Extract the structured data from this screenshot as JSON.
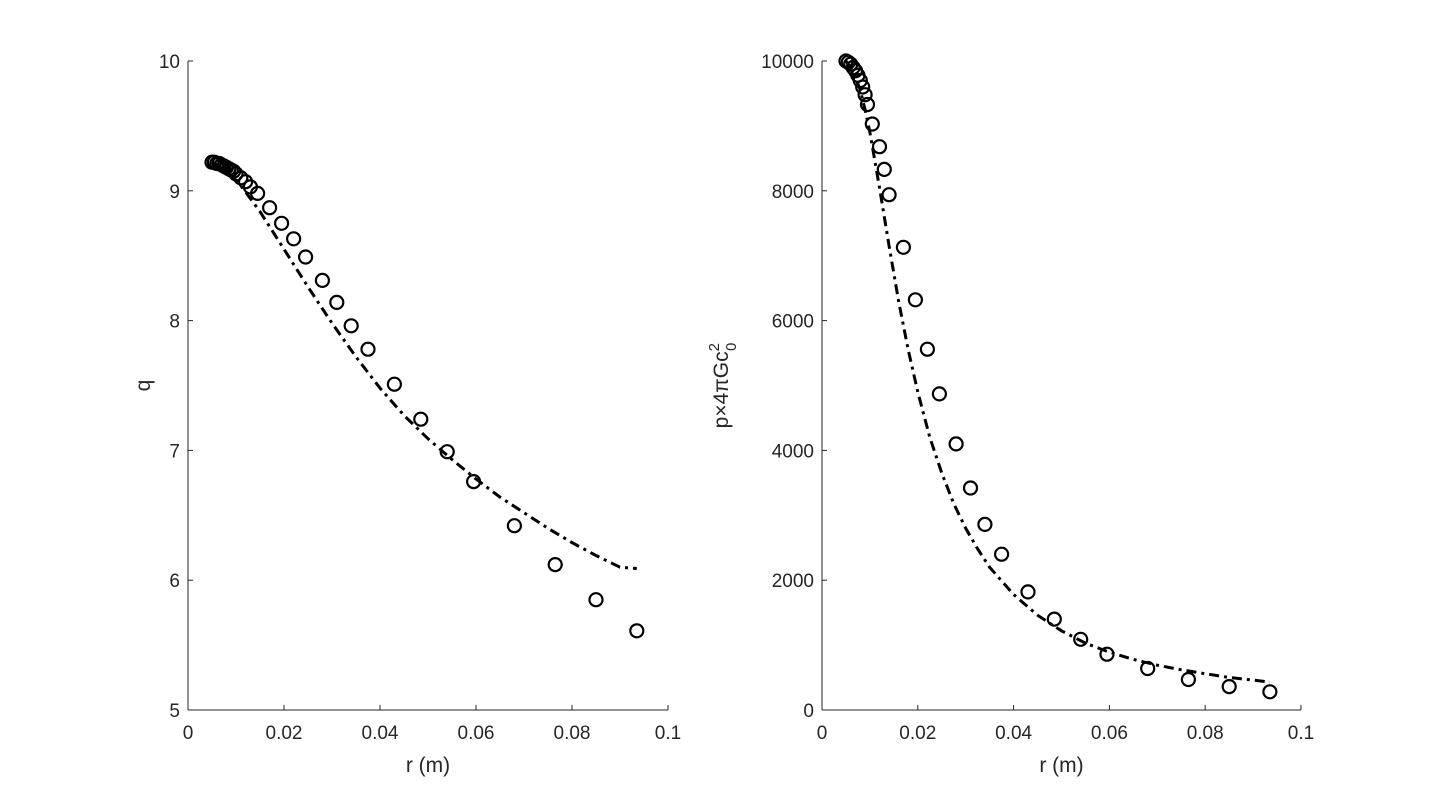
{
  "chart_data": [
    {
      "type": "scatter",
      "title": "",
      "xlabel": "r (m)",
      "ylabel": "q",
      "xlim": [
        0,
        0.1
      ],
      "ylim": [
        5,
        10
      ],
      "xticks": [
        0,
        0.02,
        0.04,
        0.06,
        0.08,
        0.1
      ],
      "xtick_labels": [
        "0",
        "0.02",
        "0.04",
        "0.06",
        "0.08",
        "0.1"
      ],
      "yticks": [
        5,
        6,
        7,
        8,
        9,
        10
      ],
      "ytick_labels": [
        "5",
        "6",
        "7",
        "8",
        "9",
        "10"
      ],
      "grid": false,
      "legend": "none",
      "series": [
        {
          "style": "markers",
          "marker": "open-circle",
          "color": "#000000",
          "x": [
            0.005,
            0.0055,
            0.006,
            0.0065,
            0.007,
            0.0075,
            0.008,
            0.0085,
            0.009,
            0.0095,
            0.01,
            0.011,
            0.012,
            0.013,
            0.0145,
            0.017,
            0.0195,
            0.022,
            0.0245,
            0.028,
            0.031,
            0.034,
            0.0375,
            0.043,
            0.0485,
            0.054,
            0.0595,
            0.068,
            0.0765,
            0.085,
            0.0935
          ],
          "y": [
            9.22,
            9.22,
            9.21,
            9.21,
            9.2,
            9.19,
            9.18,
            9.17,
            9.16,
            9.15,
            9.13,
            9.1,
            9.07,
            9.03,
            8.98,
            8.87,
            8.75,
            8.63,
            8.49,
            8.31,
            8.14,
            7.96,
            7.78,
            7.51,
            7.24,
            6.99,
            6.76,
            6.42,
            6.12,
            5.85,
            5.61
          ]
        },
        {
          "style": "dash-dot-line",
          "color": "#000000",
          "x": [
            0.005,
            0.007,
            0.009,
            0.011,
            0.015,
            0.02,
            0.025,
            0.03,
            0.035,
            0.04,
            0.045,
            0.05,
            0.055,
            0.06,
            0.065,
            0.07,
            0.075,
            0.08,
            0.085,
            0.09,
            0.0935
          ],
          "y": [
            9.22,
            9.18,
            9.12,
            9.04,
            8.84,
            8.55,
            8.26,
            7.98,
            7.72,
            7.48,
            7.27,
            7.09,
            6.93,
            6.78,
            6.64,
            6.52,
            6.4,
            6.29,
            6.19,
            6.1,
            6.09
          ]
        }
      ]
    },
    {
      "type": "scatter",
      "title": "",
      "xlabel": "r (m)",
      "ylabel": "p×4πGc",
      "ylabel_superscript": "2",
      "ylabel_subscript": "0",
      "xlim": [
        0,
        0.1
      ],
      "ylim": [
        0,
        10000
      ],
      "xticks": [
        0,
        0.02,
        0.04,
        0.06,
        0.08,
        0.1
      ],
      "xtick_labels": [
        "0",
        "0.02",
        "0.04",
        "0.06",
        "0.08",
        "0.1"
      ],
      "yticks": [
        0,
        2000,
        4000,
        6000,
        8000,
        10000
      ],
      "ytick_labels": [
        "0",
        "2000",
        "4000",
        "6000",
        "8000",
        "10000"
      ],
      "grid": false,
      "legend": "none",
      "series": [
        {
          "style": "markers",
          "marker": "open-circle",
          "color": "#000000",
          "x": [
            0.005,
            0.0055,
            0.006,
            0.0065,
            0.007,
            0.0075,
            0.008,
            0.0085,
            0.009,
            0.0095,
            0.0105,
            0.012,
            0.013,
            0.014,
            0.017,
            0.0195,
            0.022,
            0.0245,
            0.028,
            0.031,
            0.034,
            0.0375,
            0.043,
            0.0485,
            0.054,
            0.0595,
            0.068,
            0.0765,
            0.085,
            0.0935
          ],
          "y": [
            10000,
            9980,
            9950,
            9900,
            9850,
            9780,
            9700,
            9600,
            9480,
            9330,
            9030,
            8680,
            8330,
            7940,
            7130,
            6320,
            5560,
            4870,
            4100,
            3420,
            2860,
            2400,
            1820,
            1400,
            1090,
            860,
            640,
            470,
            360,
            280
          ]
        },
        {
          "style": "dash-dot-line",
          "color": "#000000",
          "x": [
            0.005,
            0.006,
            0.007,
            0.008,
            0.009,
            0.01,
            0.012,
            0.014,
            0.016,
            0.018,
            0.02,
            0.0225,
            0.025,
            0.0275,
            0.03,
            0.0325,
            0.035,
            0.04,
            0.045,
            0.05,
            0.055,
            0.06,
            0.065,
            0.07,
            0.075,
            0.08,
            0.085,
            0.09,
            0.0935
          ],
          "y": [
            10000,
            9900,
            9750,
            9550,
            9250,
            8900,
            8050,
            7150,
            6300,
            5550,
            4900,
            4200,
            3650,
            3180,
            2800,
            2480,
            2200,
            1780,
            1460,
            1220,
            1030,
            890,
            780,
            690,
            620,
            560,
            500,
            460,
            430
          ]
        }
      ]
    }
  ]
}
